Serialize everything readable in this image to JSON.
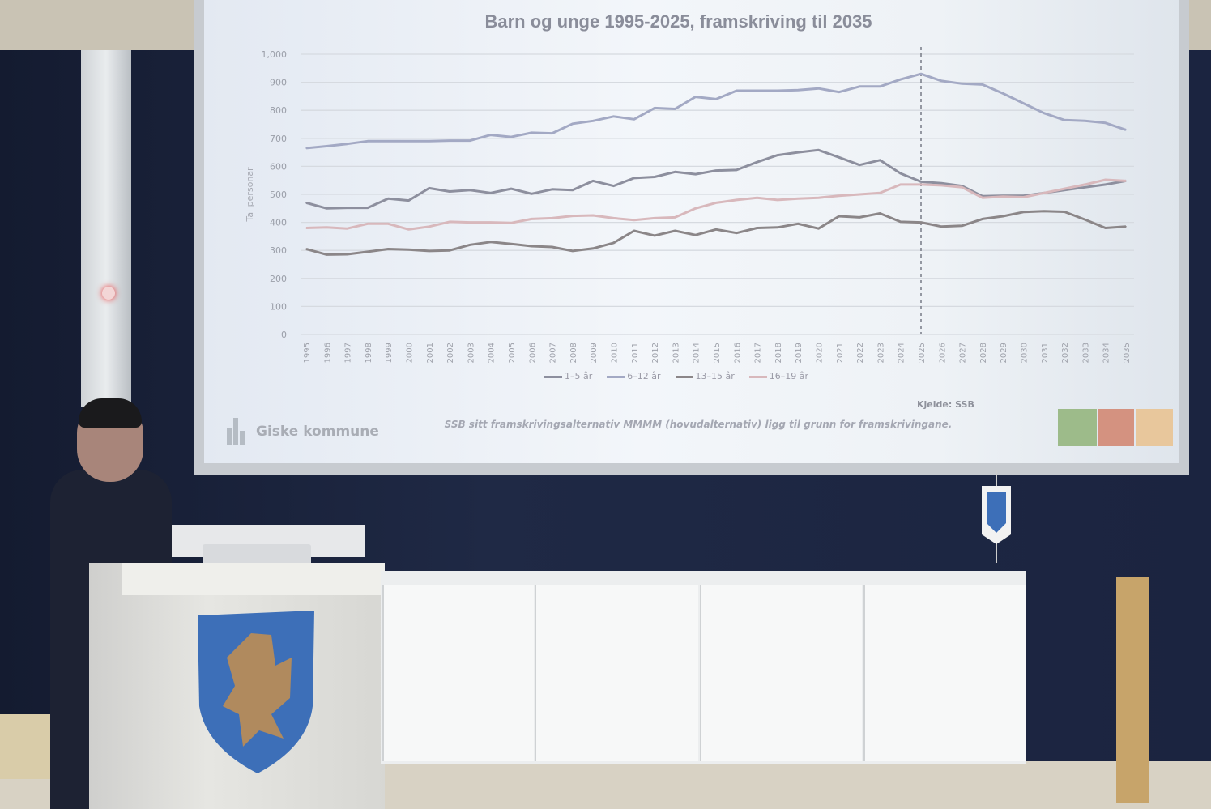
{
  "slide": {
    "organization": "Giske kommune",
    "source": "Kjelde: SSB",
    "note": "SSB sitt framskrivingsalternativ MMMM (hovudalternativ) ligg til grunn for framskrivingane."
  },
  "chart_data": {
    "type": "line",
    "title": "Barn og unge 1995-2025, framskriving til 2035",
    "xlabel": "",
    "ylabel": "Tal personar",
    "ylim": [
      0,
      1000
    ],
    "yticks": [
      "0",
      "100",
      "200",
      "300",
      "400",
      "500",
      "600",
      "700",
      "800",
      "900",
      "1,000"
    ],
    "grid": true,
    "legend_position": "bottom",
    "projection_start_marker": 2025,
    "x": [
      1995,
      1996,
      1997,
      1998,
      1999,
      2000,
      2001,
      2002,
      2003,
      2004,
      2005,
      2006,
      2007,
      2008,
      2009,
      2010,
      2011,
      2012,
      2013,
      2014,
      2015,
      2016,
      2017,
      2018,
      2019,
      2020,
      2021,
      2022,
      2023,
      2024,
      2025,
      2026,
      2027,
      2028,
      2029,
      2030,
      2031,
      2032,
      2033,
      2034,
      2035
    ],
    "series": [
      {
        "name": "1–5 år",
        "color": "#8d8f9e",
        "values": [
          470,
          450,
          452,
          452,
          485,
          478,
          522,
          510,
          515,
          505,
          520,
          502,
          518,
          515,
          548,
          530,
          558,
          562,
          580,
          572,
          585,
          587,
          615,
          640,
          650,
          658,
          632,
          605,
          622,
          575,
          545,
          540,
          530,
          493,
          495,
          495,
          505,
          515,
          525,
          535,
          548
        ]
      },
      {
        "name": "6–12 år",
        "color": "#a3a9c4",
        "values": [
          665,
          672,
          680,
          690,
          690,
          690,
          690,
          692,
          692,
          712,
          705,
          720,
          718,
          752,
          762,
          778,
          768,
          808,
          805,
          848,
          840,
          870,
          870,
          870,
          872,
          878,
          865,
          885,
          885,
          910,
          930,
          905,
          895,
          892,
          860,
          825,
          790,
          765,
          762,
          755,
          730
        ]
      },
      {
        "name": "13–15 år",
        "color": "#8b8688",
        "values": [
          305,
          285,
          286,
          295,
          305,
          303,
          298,
          300,
          320,
          330,
          323,
          315,
          312,
          298,
          307,
          327,
          370,
          353,
          370,
          355,
          375,
          362,
          380,
          382,
          395,
          378,
          422,
          418,
          432,
          402,
          400,
          385,
          388,
          412,
          422,
          437,
          440,
          438,
          410,
          380,
          385
        ]
      },
      {
        "name": "16–19 år",
        "color": "#d8b8bc",
        "values": [
          380,
          382,
          378,
          395,
          395,
          375,
          385,
          402,
          400,
          400,
          398,
          412,
          415,
          423,
          425,
          415,
          408,
          415,
          418,
          450,
          470,
          480,
          488,
          480,
          485,
          488,
          495,
          500,
          505,
          535,
          535,
          532,
          525,
          488,
          492,
          490,
          505,
          520,
          535,
          552,
          548
        ]
      }
    ]
  }
}
